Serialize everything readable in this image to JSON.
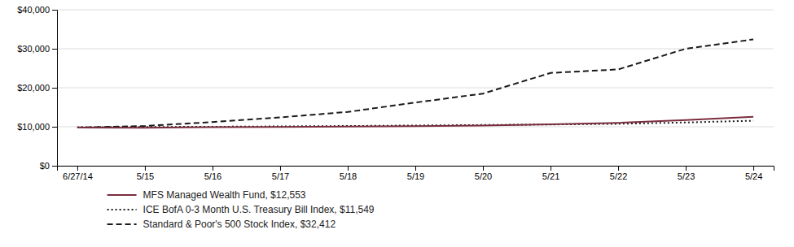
{
  "chart_data": {
    "type": "line",
    "categories": [
      "6/27/14",
      "5/15",
      "5/16",
      "5/17",
      "5/18",
      "5/19",
      "5/20",
      "5/21",
      "5/22",
      "5/23",
      "5/24"
    ],
    "series": [
      {
        "name": "MFS Managed Wealth Fund, $12,553",
        "color": "#7B2D3E",
        "line_style": "solid",
        "values": [
          9800,
          9750,
          9900,
          9950,
          10050,
          10150,
          10300,
          10600,
          11000,
          11700,
          12553
        ]
      },
      {
        "name": "ICE BofA 0-3 Month U.S. Treasury Bill Index, $11,549",
        "color": "#1a1a1a",
        "line_style": "dotted",
        "values": [
          9900,
          9950,
          10000,
          10100,
          10200,
          10320,
          10450,
          10580,
          10750,
          11100,
          11549
        ]
      },
      {
        "name": "Standard & Poor's 500 Stock Index, $32,412",
        "color": "#1a1a1a",
        "line_style": "dashed",
        "values": [
          9800,
          10200,
          11200,
          12400,
          13800,
          16200,
          18500,
          23800,
          24700,
          30000,
          32412
        ]
      }
    ],
    "ylim": [
      0,
      40000
    ],
    "yticks": [
      {
        "value": 0,
        "label": "$0"
      },
      {
        "value": 10000,
        "label": "$10,000"
      },
      {
        "value": 20000,
        "label": "$20,000"
      },
      {
        "value": 30000,
        "label": "$30,000"
      },
      {
        "value": 40000,
        "label": "$40,000"
      }
    ],
    "grid": true,
    "legend": "bottom"
  }
}
